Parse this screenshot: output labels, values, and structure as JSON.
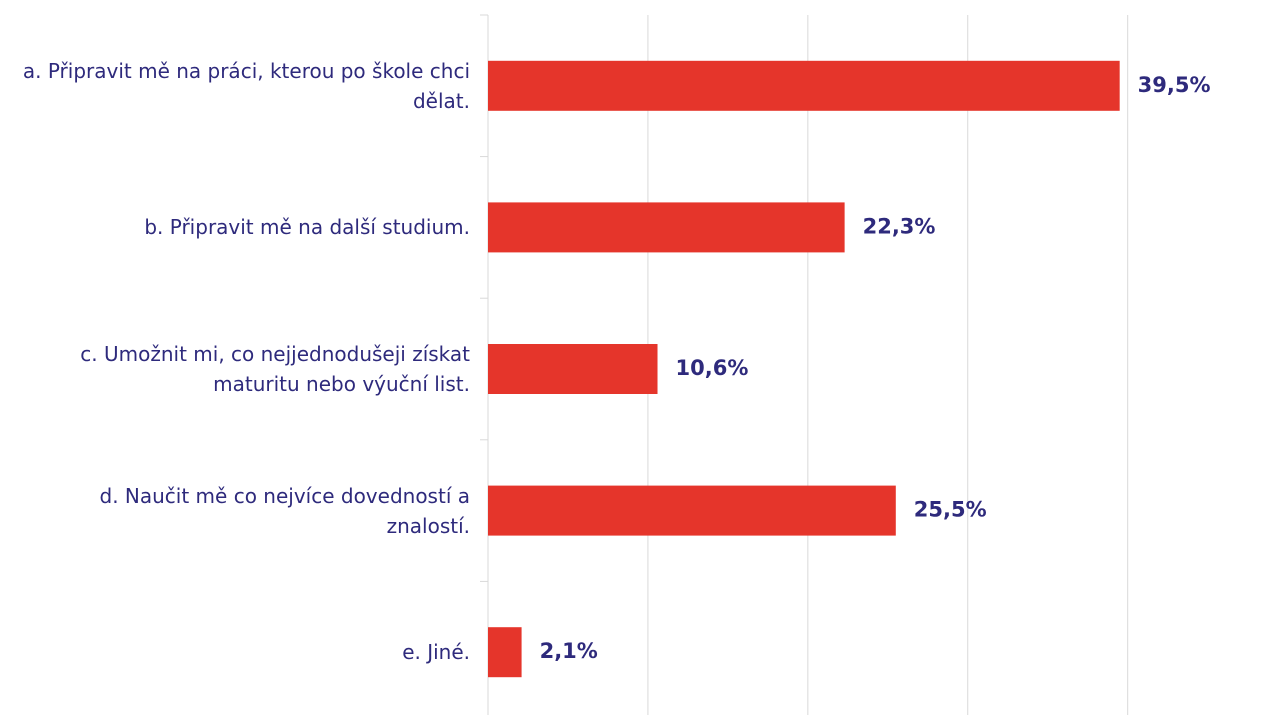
{
  "chart_data": {
    "type": "bar",
    "orientation": "horizontal",
    "categories": [
      "a. Připravit mě na práci, kterou po škole chci dělat.",
      "b. Připravit mě na další studium.",
      "c. Umožnit mi, co nejjednodušeji získat maturitu nebo výuční list.",
      "d. Naučit mě co nejvíce dovedností a znalostí.",
      "e. Jiné."
    ],
    "values": [
      39.5,
      22.3,
      10.6,
      25.5,
      2.1
    ],
    "value_labels": [
      "39,5%",
      "22,3%",
      "10,6%",
      "25,5%",
      "2,1%"
    ],
    "color": "#e5352b",
    "xlim": [
      0,
      49.4
    ],
    "xticks": [
      0,
      10,
      20,
      30,
      40
    ],
    "grid": true
  }
}
